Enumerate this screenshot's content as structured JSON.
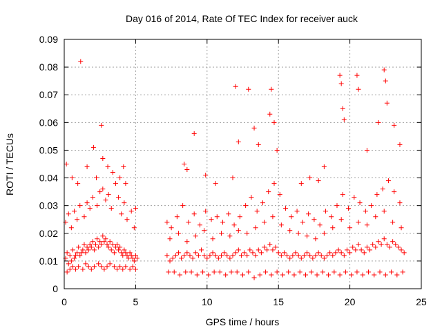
{
  "chart_data": {
    "type": "scatter",
    "title": "Day 016 of 2014, Rate Of TEC Index for receiver auck",
    "xlabel": "GPS time / hours",
    "ylabel": "ROTI / TECUs",
    "xlim": [
      0,
      25
    ],
    "ylim": [
      0,
      0.09
    ],
    "xticks": [
      "0",
      "5",
      "10",
      "15",
      "20",
      "25"
    ],
    "yticks": [
      "0",
      "0.01",
      "0.02",
      "0.03",
      "0.04",
      "0.05",
      "0.06",
      "0.07",
      "0.08",
      "0.09"
    ],
    "grid": true,
    "marker": "plus",
    "color": "#ff0000",
    "series": [
      {
        "name": "",
        "x": [
          0.1,
          0.2,
          0.3,
          0.4,
          0.5,
          0.6,
          0.7,
          0.8,
          0.9,
          1.0,
          1.1,
          1.2,
          1.3,
          1.4,
          1.5,
          1.6,
          1.7,
          1.8,
          1.9,
          2.0,
          2.1,
          2.2,
          2.3,
          2.4,
          2.5,
          2.6,
          2.7,
          2.8,
          2.9,
          3.0,
          3.1,
          3.2,
          3.3,
          3.4,
          3.5,
          3.6,
          3.7,
          3.8,
          3.9,
          4.0,
          4.1,
          4.2,
          4.3,
          4.4,
          4.5,
          4.6,
          4.7,
          4.8,
          4.9,
          5.0,
          5.1,
          0.2,
          0.4,
          0.6,
          0.8,
          1.0,
          1.3,
          1.5,
          1.7,
          1.9,
          2.1,
          2.4,
          2.6,
          2.8,
          3.0,
          3.2,
          3.5,
          3.7,
          3.9,
          4.1,
          4.3,
          4.6,
          4.8,
          5.0,
          0.1,
          0.3,
          0.5,
          0.7,
          0.9,
          1.1,
          1.4,
          1.6,
          1.8,
          2.0,
          2.3,
          2.5,
          2.7,
          2.9,
          3.1,
          3.3,
          3.6,
          3.8,
          4.0,
          4.2,
          4.4,
          4.7,
          4.9,
          0.15,
          0.55,
          0.95,
          1.15,
          1.6,
          2.05,
          2.25,
          2.6,
          2.7,
          3.05,
          3.4,
          3.9,
          4.15,
          4.3,
          5.0,
          7.2,
          7.4,
          7.6,
          7.8,
          8.0,
          8.2,
          8.4,
          8.6,
          8.8,
          9.0,
          9.2,
          9.4,
          9.6,
          9.8,
          10.0,
          10.2,
          10.4,
          10.6,
          10.8,
          11.0,
          11.2,
          11.4,
          11.6,
          11.8,
          12.0,
          12.2,
          12.4,
          12.6,
          12.8,
          13.0,
          13.2,
          13.4,
          13.6,
          13.8,
          14.0,
          14.2,
          14.4,
          14.6,
          14.8,
          15.0,
          15.2,
          15.4,
          15.6,
          15.8,
          16.0,
          16.2,
          16.4,
          16.6,
          16.8,
          17.0,
          17.2,
          17.4,
          17.6,
          17.8,
          18.0,
          18.2,
          18.4,
          18.6,
          18.8,
          19.0,
          19.2,
          19.4,
          19.6,
          19.8,
          20.0,
          20.2,
          20.4,
          20.6,
          20.8,
          21.0,
          21.2,
          21.4,
          21.6,
          21.8,
          22.0,
          22.2,
          22.4,
          22.6,
          22.8,
          23.0,
          23.2,
          23.4,
          23.6,
          23.8,
          7.3,
          7.7,
          8.1,
          8.5,
          8.9,
          9.3,
          9.7,
          10.1,
          10.5,
          10.9,
          11.3,
          11.7,
          12.1,
          12.5,
          12.9,
          13.3,
          13.7,
          14.1,
          14.5,
          14.9,
          15.3,
          15.7,
          16.1,
          16.5,
          16.9,
          17.3,
          17.7,
          18.1,
          18.5,
          18.9,
          19.3,
          19.7,
          20.1,
          20.5,
          20.9,
          21.3,
          21.7,
          22.1,
          22.5,
          22.9,
          23.3,
          23.7,
          7.5,
          7.9,
          8.3,
          8.7,
          9.1,
          9.5,
          9.9,
          10.3,
          10.7,
          11.1,
          11.5,
          11.9,
          12.3,
          12.7,
          13.1,
          13.5,
          13.9,
          14.3,
          14.7,
          15.1,
          15.5,
          15.9,
          16.3,
          16.7,
          17.1,
          17.5,
          17.9,
          18.3,
          18.7,
          19.1,
          19.5,
          19.9,
          20.3,
          20.7,
          21.1,
          21.5,
          21.9,
          22.3,
          22.7,
          23.1,
          23.5,
          7.4,
          8.0,
          8.6,
          9.2,
          9.8,
          10.4,
          11.0,
          11.6,
          12.2,
          12.8,
          13.4,
          14.0,
          14.6,
          15.2,
          15.8,
          16.4,
          17.0,
          17.6,
          18.2,
          18.8,
          19.4,
          20.0,
          20.6,
          21.2,
          21.8,
          22.4,
          23.0,
          23.6,
          7.2,
          8.4,
          8.6,
          9.1,
          9.9,
          10.6,
          11.8,
          12.0,
          12.2,
          12.9,
          13.3,
          13.6,
          14.4,
          14.5,
          14.7,
          14.9,
          16.6,
          17.2,
          17.8,
          18.2,
          19.3,
          19.4,
          19.5,
          19.6,
          20.5,
          20.6,
          21.2,
          22.0,
          22.4,
          22.5,
          22.6,
          23.1,
          23.5
        ],
        "y": [
          0.011,
          0.013,
          0.009,
          0.012,
          0.01,
          0.014,
          0.011,
          0.012,
          0.013,
          0.015,
          0.012,
          0.013,
          0.014,
          0.016,
          0.013,
          0.015,
          0.014,
          0.016,
          0.015,
          0.017,
          0.014,
          0.016,
          0.018,
          0.015,
          0.017,
          0.016,
          0.019,
          0.017,
          0.018,
          0.016,
          0.015,
          0.017,
          0.014,
          0.016,
          0.013,
          0.015,
          0.016,
          0.014,
          0.015,
          0.013,
          0.012,
          0.014,
          0.013,
          0.012,
          0.011,
          0.013,
          0.012,
          0.011,
          0.01,
          0.012,
          0.011,
          0.006,
          0.007,
          0.008,
          0.007,
          0.008,
          0.007,
          0.009,
          0.008,
          0.007,
          0.008,
          0.009,
          0.008,
          0.007,
          0.008,
          0.009,
          0.008,
          0.007,
          0.008,
          0.007,
          0.008,
          0.007,
          0.008,
          0.007,
          0.024,
          0.027,
          0.022,
          0.028,
          0.025,
          0.03,
          0.026,
          0.031,
          0.029,
          0.033,
          0.03,
          0.035,
          0.036,
          0.032,
          0.034,
          0.029,
          0.038,
          0.033,
          0.027,
          0.031,
          0.025,
          0.028,
          0.022,
          0.045,
          0.04,
          0.038,
          0.082,
          0.044,
          0.051,
          0.04,
          0.059,
          0.047,
          0.044,
          0.042,
          0.04,
          0.044,
          0.038,
          0.029,
          0.012,
          0.01,
          0.011,
          0.012,
          0.013,
          0.011,
          0.012,
          0.013,
          0.012,
          0.011,
          0.013,
          0.012,
          0.014,
          0.012,
          0.011,
          0.012,
          0.013,
          0.012,
          0.011,
          0.012,
          0.013,
          0.012,
          0.011,
          0.012,
          0.013,
          0.014,
          0.012,
          0.013,
          0.012,
          0.014,
          0.013,
          0.012,
          0.014,
          0.013,
          0.015,
          0.014,
          0.016,
          0.014,
          0.015,
          0.013,
          0.012,
          0.013,
          0.012,
          0.011,
          0.012,
          0.013,
          0.012,
          0.011,
          0.012,
          0.013,
          0.012,
          0.011,
          0.012,
          0.013,
          0.012,
          0.011,
          0.012,
          0.013,
          0.012,
          0.013,
          0.014,
          0.013,
          0.012,
          0.014,
          0.013,
          0.015,
          0.014,
          0.016,
          0.014,
          0.013,
          0.015,
          0.014,
          0.016,
          0.015,
          0.017,
          0.016,
          0.018,
          0.016,
          0.015,
          0.017,
          0.016,
          0.015,
          0.014,
          0.013,
          0.006,
          0.006,
          0.005,
          0.006,
          0.006,
          0.005,
          0.006,
          0.005,
          0.006,
          0.006,
          0.005,
          0.006,
          0.006,
          0.005,
          0.006,
          0.004,
          0.005,
          0.006,
          0.005,
          0.006,
          0.005,
          0.006,
          0.005,
          0.006,
          0.005,
          0.006,
          0.005,
          0.006,
          0.005,
          0.006,
          0.005,
          0.006,
          0.005,
          0.006,
          0.005,
          0.006,
          0.005,
          0.006,
          0.005,
          0.006,
          0.005,
          0.006,
          0.022,
          0.026,
          0.03,
          0.024,
          0.027,
          0.023,
          0.028,
          0.025,
          0.026,
          0.024,
          0.027,
          0.023,
          0.026,
          0.03,
          0.033,
          0.028,
          0.031,
          0.035,
          0.038,
          0.034,
          0.029,
          0.026,
          0.028,
          0.024,
          0.027,
          0.025,
          0.023,
          0.028,
          0.026,
          0.03,
          0.034,
          0.029,
          0.033,
          0.031,
          0.028,
          0.03,
          0.034,
          0.036,
          0.039,
          0.035,
          0.031,
          0.018,
          0.02,
          0.017,
          0.019,
          0.021,
          0.018,
          0.02,
          0.019,
          0.021,
          0.02,
          0.022,
          0.024,
          0.026,
          0.023,
          0.021,
          0.02,
          0.019,
          0.018,
          0.02,
          0.022,
          0.025,
          0.022,
          0.024,
          0.023,
          0.026,
          0.028,
          0.024,
          0.022,
          0.024,
          0.045,
          0.043,
          0.056,
          0.041,
          0.038,
          0.04,
          0.073,
          0.053,
          0.072,
          0.058,
          0.052,
          0.063,
          0.072,
          0.06,
          0.05,
          0.038,
          0.04,
          0.039,
          0.044,
          0.077,
          0.074,
          0.065,
          0.061,
          0.077,
          0.072,
          0.05,
          0.06,
          0.079,
          0.075,
          0.067,
          0.059,
          0.052
        ]
      }
    ]
  }
}
